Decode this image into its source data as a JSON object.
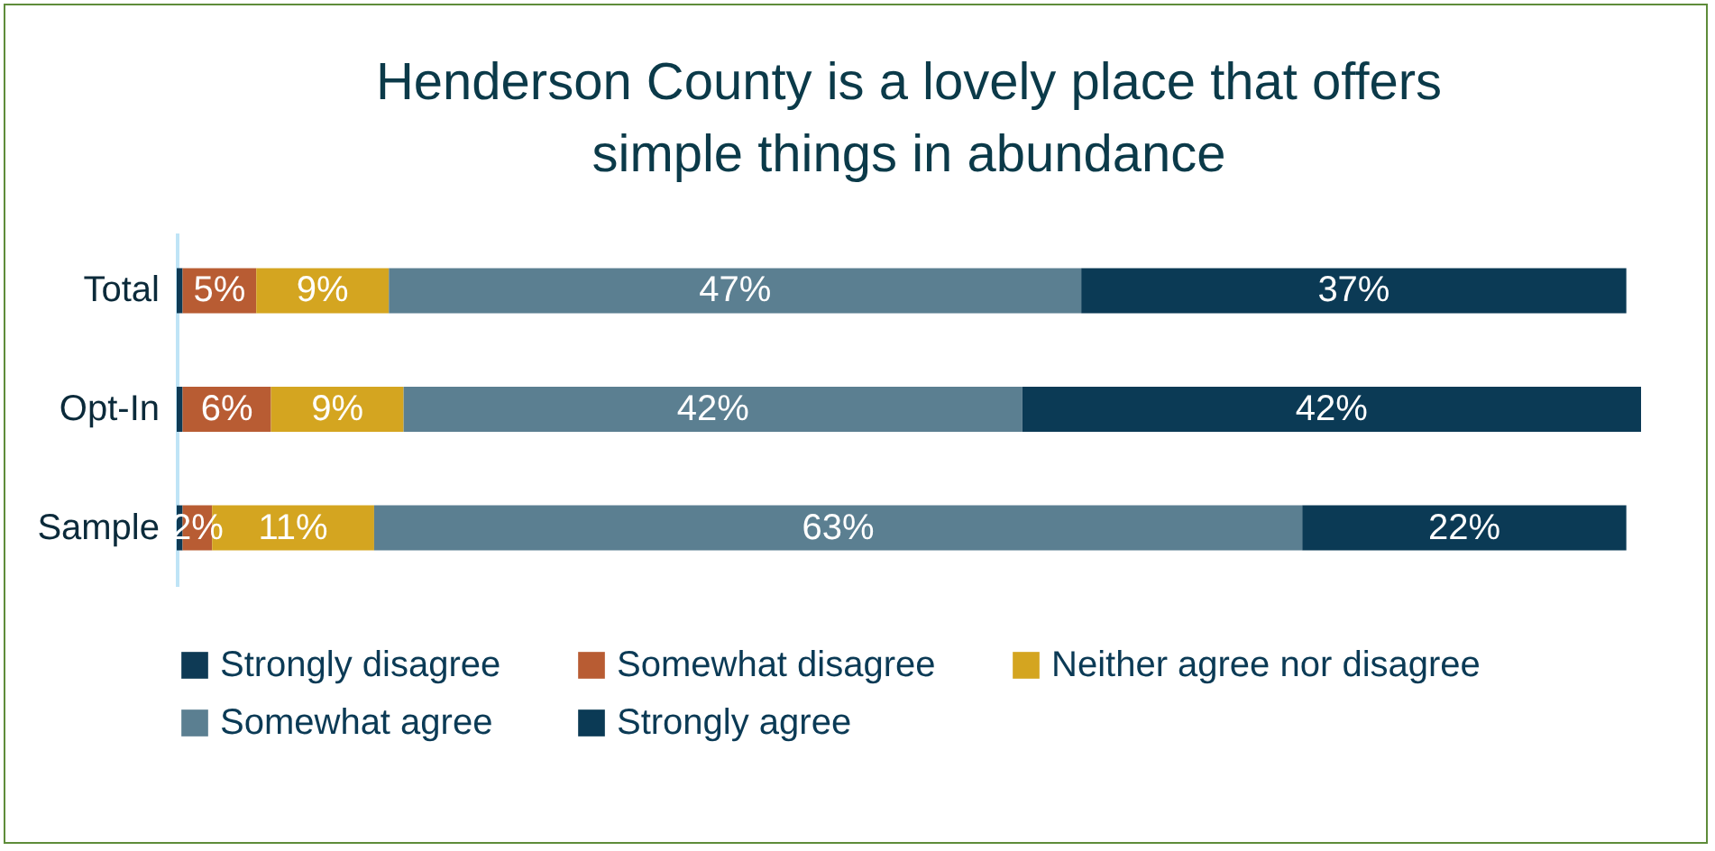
{
  "chart_data": {
    "type": "bar",
    "title": "Henderson County is a lovely place that offers simple things in abundance",
    "orientation": "horizontal",
    "stacked": true,
    "legend": "bottom",
    "categories": [
      "Total",
      "Opt-In",
      "Sample"
    ],
    "series": [
      {
        "name": "Strongly disagree",
        "color": "#0e3a55",
        "values": [
          0.4,
          0.4,
          0.4
        ],
        "value_labels": [
          null,
          null,
          null
        ]
      },
      {
        "name": "Somewhat disagree",
        "color": "#b85c33",
        "values": [
          5,
          6,
          2
        ],
        "value_labels": [
          "5%",
          "6%",
          "2%"
        ]
      },
      {
        "name": "Neither agree nor disagree",
        "color": "#d4a520",
        "values": [
          9,
          9,
          11
        ],
        "value_labels": [
          "9%",
          "9%",
          "11%"
        ]
      },
      {
        "name": "Somewhat agree",
        "color": "#5b7f91",
        "values": [
          47,
          42,
          63
        ],
        "value_labels": [
          "47%",
          "42%",
          "63%"
        ]
      },
      {
        "name": "Strongly agree",
        "color": "#0b3a55",
        "values": [
          37,
          42,
          22
        ],
        "value_labels": [
          "37%",
          "42%",
          "22%"
        ]
      }
    ]
  }
}
